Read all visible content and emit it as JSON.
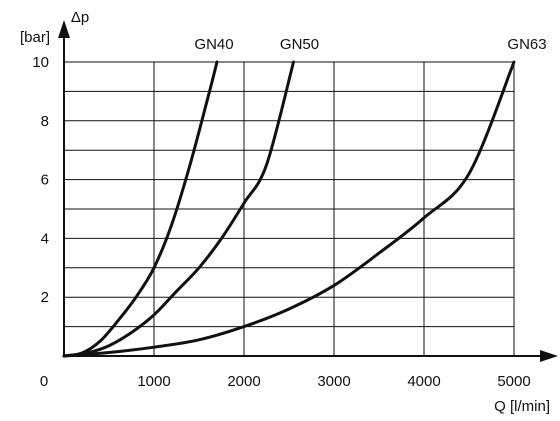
{
  "chart_data": {
    "type": "line",
    "title": "",
    "ylabel_symbol": "Δp",
    "ylabel_unit": "[bar]",
    "xlabel": "Q [l/min]",
    "xlim": [
      0,
      5000
    ],
    "ylim": [
      0,
      10
    ],
    "x_ticks": [
      0,
      1000,
      2000,
      3000,
      4000,
      5000
    ],
    "x_tick_labels": [
      "0",
      "1000",
      "2000",
      "3000",
      "4000",
      "5000"
    ],
    "y_ticks": [
      2,
      4,
      6,
      8,
      10
    ],
    "y_tick_labels": [
      "2",
      "4",
      "6",
      "8",
      "10"
    ],
    "grid": true,
    "grid_x_step": 1000,
    "grid_y_step": 1,
    "series": [
      {
        "name": "GN40",
        "x": [
          0,
          200,
          400,
          600,
          800,
          1000,
          1200,
          1400,
          1600,
          1700
        ],
        "y": [
          0,
          0.1,
          0.5,
          1.2,
          2.0,
          3.0,
          4.5,
          6.5,
          8.8,
          10
        ]
      },
      {
        "name": "GN50",
        "x": [
          0,
          250,
          500,
          750,
          1000,
          1250,
          1500,
          1750,
          2000,
          2250,
          2550
        ],
        "y": [
          0,
          0.1,
          0.35,
          0.8,
          1.4,
          2.2,
          3.0,
          4.0,
          5.2,
          6.5,
          10
        ]
      },
      {
        "name": "GN63",
        "x": [
          0,
          500,
          1000,
          1500,
          2000,
          2500,
          3000,
          3500,
          4000,
          4500,
          5000
        ],
        "y": [
          0,
          0.12,
          0.3,
          0.55,
          1.0,
          1.6,
          2.4,
          3.5,
          4.7,
          6.2,
          10
        ]
      }
    ]
  }
}
